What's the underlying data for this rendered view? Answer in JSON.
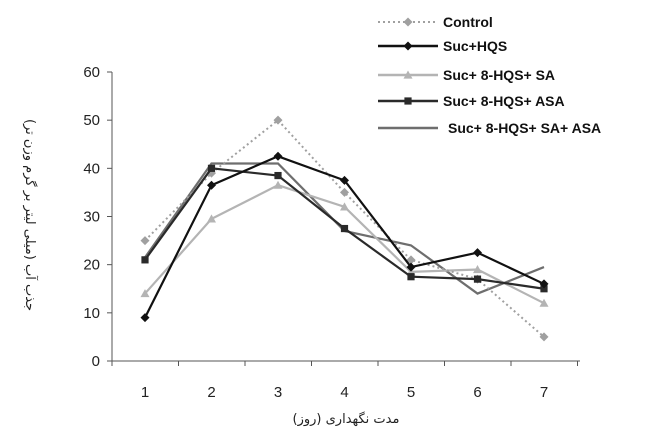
{
  "chart_data": {
    "type": "line",
    "title": "",
    "xlabel": "مدت نگهداری (روز)",
    "ylabel": "جذب آب (میلی لیتر بر گرم وزن تر)",
    "categories": [
      "1",
      "2",
      "3",
      "4",
      "5",
      "6",
      "7"
    ],
    "ylim": [
      0,
      60
    ],
    "yticks": [
      "0",
      "10",
      "20",
      "30",
      "40",
      "50",
      "60"
    ],
    "grid": false,
    "legend_position": "top-right",
    "series": [
      {
        "name": "Control",
        "values": [
          25,
          39,
          50,
          35,
          21,
          17,
          5
        ],
        "color": "#a0a0a0",
        "style": "dotted",
        "marker": "diamond"
      },
      {
        "name": "Suc+HQS",
        "values": [
          9,
          36.5,
          42.5,
          37.5,
          19.5,
          22.5,
          16
        ],
        "color": "#111111",
        "style": "solid",
        "marker": "diamond"
      },
      {
        "name": "Suc+ 8-HQS+ SA",
        "values": [
          14,
          29.5,
          36.5,
          32,
          18.5,
          19,
          12
        ],
        "color": "#b4b4b4",
        "style": "solid",
        "marker": "triangle"
      },
      {
        "name": "Suc+ 8-HQS+ ASA",
        "values": [
          21,
          40,
          38.5,
          27.5,
          17.5,
          17,
          15
        ],
        "color": "#2a2a2a",
        "style": "solid",
        "marker": "square"
      },
      {
        "name": "Suc+ 8-HQS+ SA+ ASA",
        "values": [
          21.5,
          41,
          41,
          27,
          24,
          14,
          19.5
        ],
        "color": "#6e6e6e",
        "style": "solid",
        "marker": "none"
      }
    ]
  }
}
